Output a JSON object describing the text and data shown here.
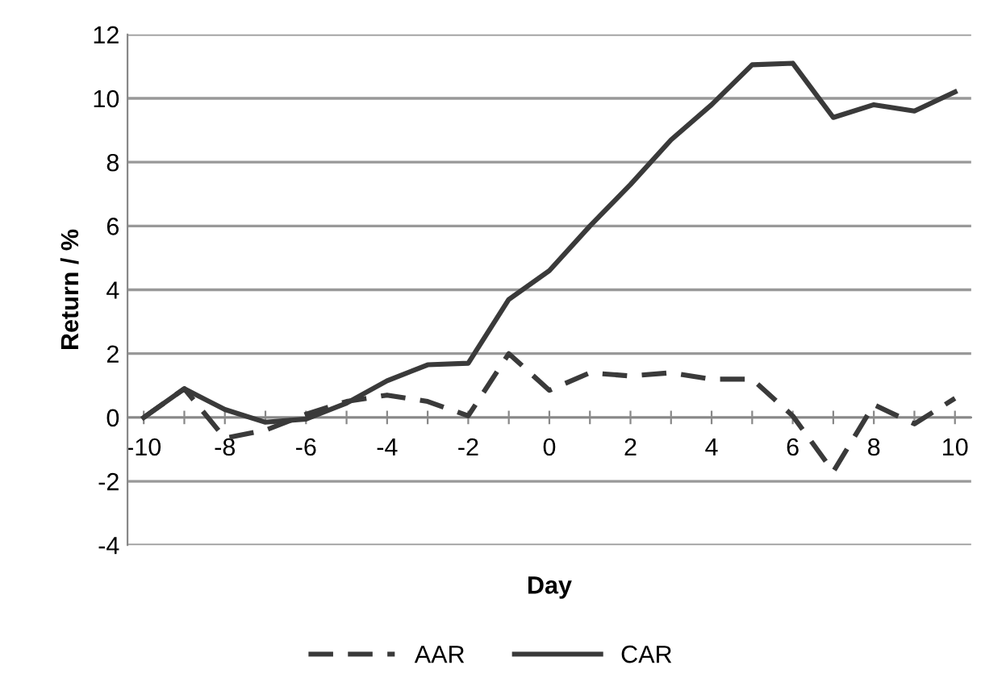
{
  "chart_data": {
    "type": "line",
    "xlabel": "Day",
    "ylabel": "Return / %",
    "x": [
      -10,
      -9,
      -8,
      -7,
      -6,
      -5,
      -4,
      -3,
      -2,
      -1,
      0,
      1,
      2,
      3,
      4,
      5,
      6,
      7,
      8,
      9,
      10
    ],
    "series": [
      {
        "name": "AAR",
        "color": "#3a3a3a",
        "line_style": "dashed",
        "values": [
          0,
          0.9,
          -0.65,
          -0.4,
          0.1,
          0.5,
          0.7,
          0.5,
          0.05,
          2.0,
          0.85,
          1.4,
          1.3,
          1.4,
          1.2,
          1.2,
          0.05,
          -1.7,
          0.4,
          -0.2,
          0.6
        ]
      },
      {
        "name": "CAR",
        "color": "#3a3a3a",
        "line_style": "solid",
        "values": [
          0,
          0.9,
          0.25,
          -0.15,
          -0.05,
          0.45,
          1.15,
          1.65,
          1.7,
          3.7,
          4.6,
          6.0,
          7.3,
          8.7,
          9.8,
          11.05,
          11.1,
          9.4,
          9.8,
          9.6,
          10.2
        ]
      }
    ],
    "xlim": [
      -10.4,
      10.4
    ],
    "xticks": [
      -10,
      {
        "value": -9,
        "label": null
      },
      -8,
      {
        "value": -7,
        "label": null
      },
      -6,
      {
        "value": -5,
        "label": null
      },
      -4,
      {
        "value": -3,
        "label": null
      },
      -2,
      {
        "value": -1,
        "label": null
      },
      0,
      {
        "value": 1,
        "label": null
      },
      2,
      {
        "value": 3,
        "label": null
      },
      4,
      {
        "value": 5,
        "label": null
      },
      6,
      {
        "value": 7,
        "label": null
      },
      8,
      {
        "value": 9,
        "label": null
      },
      10
    ],
    "ylim": [
      -4,
      12
    ],
    "yticks": [
      -4,
      -2,
      0,
      2,
      4,
      6,
      8,
      10,
      12
    ],
    "grid": "y",
    "legend": "bottom",
    "marker": "none"
  }
}
